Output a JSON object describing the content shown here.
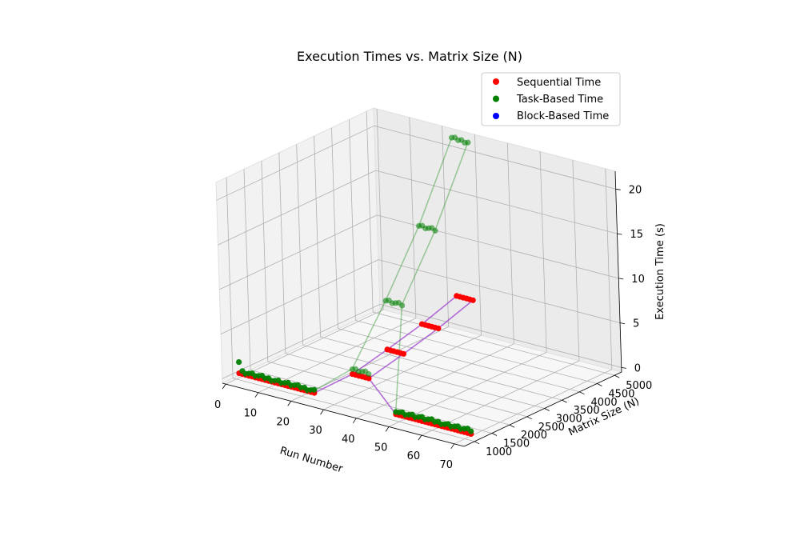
{
  "chart_data": {
    "type": "scatter",
    "title": "Execution Times vs. Matrix Size (N)",
    "xlabel": "Run Number",
    "ylabel": "Matrix Size (N)",
    "zlabel": "Execution Time (s)",
    "xlim": [
      -1,
      73
    ],
    "ylim": [
      700,
      5200
    ],
    "zlim": [
      -0.5,
      22
    ],
    "x_ticks": [
      "0",
      "10",
      "20",
      "30",
      "40",
      "50",
      "60",
      "70"
    ],
    "y_ticks": [
      "1000",
      "1500",
      "2000",
      "2500",
      "3000",
      "3500",
      "4000",
      "4500",
      "5000"
    ],
    "z_ticks": [
      "0",
      "5",
      "10",
      "15",
      "20"
    ],
    "grid": true,
    "legend_position": "top-right",
    "groups": [
      {
        "matrix_size": 1000,
        "runs": [
          1,
          24
        ],
        "sequential": 0.25,
        "task": 0.5,
        "task_first": 1.5
      },
      {
        "matrix_size": 1000,
        "runs": [
          49,
          72
        ],
        "sequential": 0.25,
        "task": 0.6,
        "task_first": 0.5
      },
      {
        "matrix_size": 2000,
        "runs": [
          25,
          30
        ],
        "sequential": 0.6,
        "task": 1.2
      },
      {
        "matrix_size": 3000,
        "runs": [
          25,
          30
        ],
        "sequential": 1.5,
        "task": 7.0
      },
      {
        "matrix_size": 4000,
        "runs": [
          25,
          30
        ],
        "sequential": 2.5,
        "task": 13.5
      },
      {
        "matrix_size": 5000,
        "runs": [
          25,
          30
        ],
        "sequential": 3.8,
        "task": 21.5
      }
    ],
    "series": [
      {
        "name": "Sequential Time",
        "color": "#ff0000"
      },
      {
        "name": "Task-Based Time",
        "color": "#008000"
      },
      {
        "name": "Block-Based Time",
        "color": "#0000ff"
      }
    ],
    "connector_lines": [
      {
        "series": "Task-Based Time",
        "color": "#008000",
        "from_run": 24,
        "to_sizes": [
          2000,
          3000,
          4000,
          5000
        ]
      },
      {
        "series": "Task-Based Time",
        "color": "#008000",
        "from_run": 49,
        "to_sizes": [
          3000,
          4000,
          5000
        ]
      },
      {
        "series": "Sequential Time",
        "color": "#9933cc",
        "from_run": 24,
        "to_sizes": [
          2000,
          3000,
          4000,
          5000
        ]
      },
      {
        "series": "Sequential Time",
        "color": "#9933cc",
        "from_run": 49,
        "to_sizes": [
          2000,
          3000,
          4000,
          5000
        ]
      }
    ]
  }
}
